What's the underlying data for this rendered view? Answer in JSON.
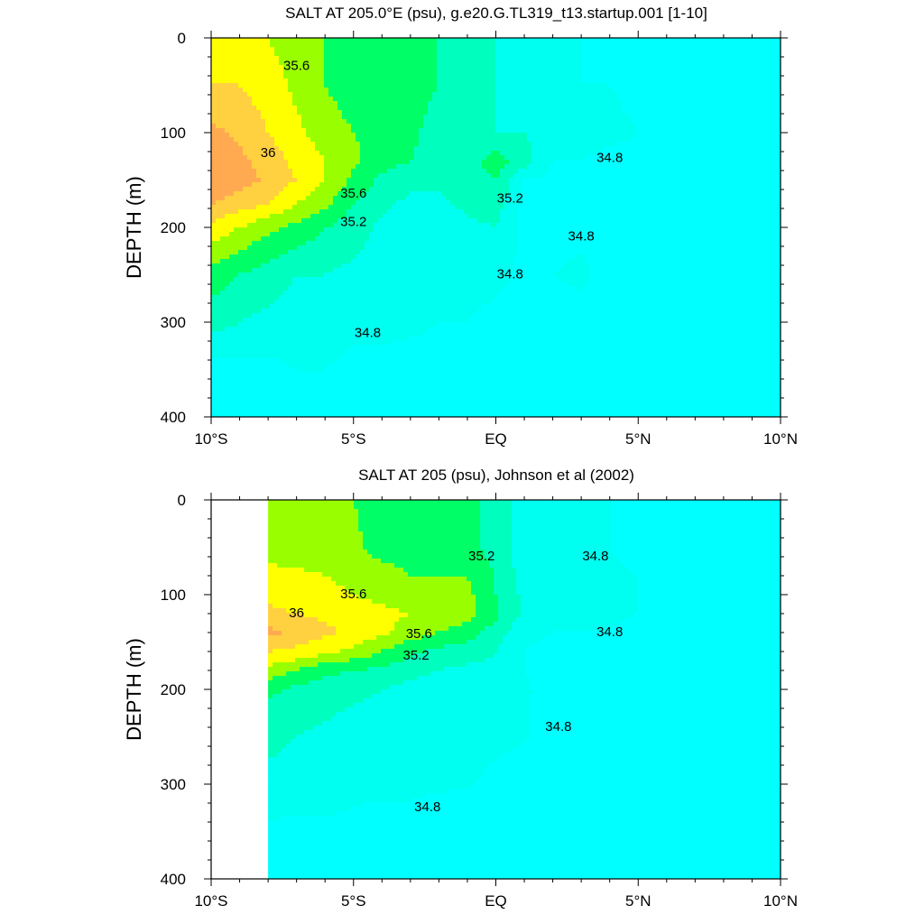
{
  "colors": {
    "scale": [
      "#00ffff",
      "#00fff0",
      "#00ffbf",
      "#00ff66",
      "#99ff00",
      "#ffff00",
      "#ffd040",
      "#ffaa50"
    ],
    "levels": [
      34.6,
      34.8,
      35.0,
      35.2,
      35.4,
      35.6,
      35.8,
      36.0,
      36.2
    ],
    "line": "#000000",
    "missing": "#ffffff"
  },
  "chart_data": [
    {
      "type": "heatmap",
      "title": "SALT AT 205.0°E (psu), g.e20.G.TL319_t13.startup.001 [1-10]",
      "xlabel": "",
      "ylabel": "DEPTH (m)",
      "xlim": [
        -10,
        10
      ],
      "ylim": [
        400,
        0
      ],
      "xticks": [
        "10°S",
        "5°S",
        "EQ",
        "5°N",
        "10°N"
      ],
      "yticks": [
        "0",
        "100",
        "200",
        "300",
        "400"
      ],
      "contour_labels": [
        {
          "text": "35.6",
          "x": -7.0,
          "y": 30
        },
        {
          "text": "36",
          "x": -8.0,
          "y": 122
        },
        {
          "text": "35.6",
          "x": -5.0,
          "y": 165
        },
        {
          "text": "35.2",
          "x": -5.0,
          "y": 195
        },
        {
          "text": "35.2",
          "x": 0.5,
          "y": 170
        },
        {
          "text": "34.8",
          "x": 4.0,
          "y": 127
        },
        {
          "text": "34.8",
          "x": 3.0,
          "y": 210
        },
        {
          "text": "34.8",
          "x": 0.5,
          "y": 250
        },
        {
          "text": "34.8",
          "x": -4.5,
          "y": 312
        }
      ],
      "latitudes": [
        -10,
        -9,
        -8,
        -7,
        -6,
        -5,
        -4,
        -3,
        -2,
        -1,
        0,
        1,
        2,
        3,
        4,
        5,
        6,
        7,
        8,
        9,
        10
      ],
      "depths": [
        0,
        50,
        100,
        130,
        150,
        175,
        200,
        250,
        300,
        350,
        400
      ],
      "values": [
        [
          35.7,
          35.7,
          35.6,
          35.5,
          35.4,
          35.3,
          35.3,
          35.3,
          35.2,
          35.1,
          35.0,
          34.8,
          34.8,
          34.8,
          34.7,
          34.7,
          34.7,
          34.6,
          34.6,
          34.5,
          34.5
        ],
        [
          35.8,
          35.8,
          35.7,
          35.55,
          35.4,
          35.3,
          35.3,
          35.3,
          35.2,
          35.1,
          35.0,
          34.9,
          34.8,
          34.8,
          34.8,
          34.7,
          34.7,
          34.7,
          34.6,
          34.6,
          34.6
        ],
        [
          36.05,
          35.95,
          35.8,
          35.65,
          35.5,
          35.4,
          35.3,
          35.25,
          35.1,
          35.05,
          35.0,
          35.0,
          34.9,
          34.9,
          34.9,
          34.8,
          34.7,
          34.7,
          34.7,
          34.7,
          34.7
        ],
        [
          36.15,
          36.05,
          35.9,
          35.75,
          35.6,
          35.45,
          35.3,
          35.2,
          35.1,
          35.1,
          35.3,
          35.1,
          34.8,
          34.8,
          34.7,
          34.7,
          34.7,
          34.7,
          34.7,
          34.7,
          34.7
        ],
        [
          36.2,
          36.1,
          35.95,
          35.8,
          35.6,
          35.35,
          35.15,
          35.05,
          35.05,
          35.1,
          35.2,
          34.8,
          34.75,
          34.75,
          34.75,
          34.7,
          34.7,
          34.7,
          34.7,
          34.7,
          34.7
        ],
        [
          36.0,
          35.9,
          35.8,
          35.6,
          35.45,
          35.2,
          35.05,
          34.95,
          34.95,
          35.05,
          35.1,
          34.75,
          34.75,
          34.75,
          34.75,
          34.7,
          34.7,
          34.7,
          34.7,
          34.7,
          34.7
        ],
        [
          35.75,
          35.6,
          35.45,
          35.35,
          35.2,
          35.1,
          34.95,
          34.9,
          34.9,
          34.95,
          35.0,
          34.75,
          34.7,
          34.75,
          34.75,
          34.7,
          34.7,
          34.7,
          34.7,
          34.7,
          34.7
        ],
        [
          35.3,
          35.2,
          35.1,
          35.0,
          35.0,
          34.95,
          34.9,
          34.85,
          34.85,
          34.85,
          34.85,
          34.75,
          34.8,
          34.85,
          34.7,
          34.7,
          34.7,
          34.7,
          34.7,
          34.7,
          34.7
        ],
        [
          35.1,
          35.0,
          34.95,
          34.9,
          34.9,
          34.85,
          34.85,
          34.85,
          34.8,
          34.8,
          34.75,
          34.75,
          34.7,
          34.7,
          34.7,
          34.7,
          34.7,
          34.7,
          34.7,
          34.7,
          34.7
        ],
        [
          34.7,
          34.75,
          34.75,
          34.8,
          34.8,
          34.75,
          34.75,
          34.7,
          34.7,
          34.7,
          34.7,
          34.7,
          34.7,
          34.7,
          34.7,
          34.7,
          34.7,
          34.7,
          34.7,
          34.7,
          34.7
        ],
        [
          34.7,
          34.7,
          34.7,
          34.7,
          34.7,
          34.7,
          34.7,
          34.7,
          34.7,
          34.7,
          34.7,
          34.7,
          34.7,
          34.7,
          34.7,
          34.7,
          34.7,
          34.7,
          34.7,
          34.7,
          34.7
        ]
      ]
    },
    {
      "type": "heatmap",
      "title": "SALT AT 205 (psu), Johnson et al (2002)",
      "xlabel": "",
      "ylabel": "DEPTH (m)",
      "xlim": [
        -10,
        10
      ],
      "ylim": [
        400,
        0
      ],
      "xticks": [
        "10°S",
        "5°S",
        "EQ",
        "5°N",
        "10°N"
      ],
      "yticks": [
        "0",
        "100",
        "200",
        "300",
        "400"
      ],
      "data_xlim": [
        -8,
        10
      ],
      "contour_labels": [
        {
          "text": "35.2",
          "x": -0.5,
          "y": 60
        },
        {
          "text": "34.8",
          "x": 3.5,
          "y": 60
        },
        {
          "text": "35.6",
          "x": -5.0,
          "y": 100
        },
        {
          "text": "36",
          "x": -7.0,
          "y": 120
        },
        {
          "text": "35.6",
          "x": -2.7,
          "y": 142
        },
        {
          "text": "35.2",
          "x": -2.8,
          "y": 165
        },
        {
          "text": "34.8",
          "x": 4.0,
          "y": 140
        },
        {
          "text": "34.8",
          "x": 2.2,
          "y": 240
        },
        {
          "text": "34.8",
          "x": -2.4,
          "y": 325
        }
      ],
      "latitudes": [
        -8,
        -7,
        -6,
        -5,
        -4,
        -3,
        -2,
        -1,
        0,
        1,
        2,
        3,
        4,
        5,
        6,
        7,
        8,
        9,
        10
      ],
      "depths": [
        0,
        50,
        80,
        100,
        120,
        140,
        160,
        180,
        200,
        250,
        300,
        350,
        400
      ],
      "values": [
        [
          35.4,
          35.4,
          35.4,
          35.4,
          35.3,
          35.3,
          35.3,
          35.3,
          35.1,
          34.9,
          34.9,
          34.8,
          34.8,
          34.7,
          34.7,
          34.6,
          34.6,
          34.6,
          34.6
        ],
        [
          35.45,
          35.45,
          35.45,
          35.45,
          35.3,
          35.3,
          35.3,
          35.3,
          35.1,
          34.9,
          34.85,
          34.8,
          34.8,
          34.7,
          34.7,
          34.7,
          34.7,
          34.7,
          34.7
        ],
        [
          35.7,
          35.65,
          35.6,
          35.55,
          35.5,
          35.4,
          35.4,
          35.4,
          35.2,
          34.9,
          34.85,
          34.85,
          34.85,
          34.8,
          34.7,
          34.7,
          34.7,
          34.7,
          34.7
        ],
        [
          35.75,
          35.7,
          35.65,
          35.6,
          35.55,
          35.5,
          35.45,
          35.45,
          35.2,
          34.95,
          34.9,
          34.9,
          34.85,
          34.8,
          34.7,
          34.7,
          34.75,
          34.7,
          34.7
        ],
        [
          35.85,
          35.8,
          35.75,
          35.7,
          35.65,
          35.6,
          35.55,
          35.5,
          35.25,
          34.95,
          34.9,
          34.9,
          34.85,
          34.8,
          34.75,
          34.7,
          34.75,
          34.7,
          34.7
        ],
        [
          36.05,
          35.95,
          35.85,
          35.75,
          35.65,
          35.5,
          35.4,
          35.3,
          35.1,
          34.85,
          34.8,
          34.8,
          34.8,
          34.7,
          34.7,
          34.7,
          34.7,
          34.7,
          34.7
        ],
        [
          35.8,
          35.75,
          35.65,
          35.55,
          35.4,
          35.25,
          35.15,
          35.1,
          35.0,
          34.8,
          34.75,
          34.75,
          34.7,
          34.7,
          34.7,
          34.7,
          34.7,
          34.7,
          34.7
        ],
        [
          35.55,
          35.4,
          35.25,
          35.2,
          35.15,
          35.05,
          35.0,
          34.95,
          34.95,
          34.8,
          34.75,
          34.7,
          34.7,
          34.7,
          34.7,
          34.7,
          34.7,
          34.7,
          34.7
        ],
        [
          35.25,
          35.15,
          35.1,
          35.05,
          35.0,
          34.95,
          34.9,
          34.85,
          34.82,
          34.82,
          34.75,
          34.7,
          34.7,
          34.7,
          34.7,
          34.7,
          34.7,
          34.7,
          34.7
        ],
        [
          35.05,
          35.0,
          34.95,
          34.9,
          34.9,
          34.85,
          34.85,
          34.82,
          34.82,
          34.81,
          34.75,
          34.7,
          34.7,
          34.7,
          34.7,
          34.7,
          34.7,
          34.7,
          34.7
        ],
        [
          34.95,
          34.9,
          34.9,
          34.85,
          34.85,
          34.85,
          34.82,
          34.81,
          34.78,
          34.75,
          34.72,
          34.7,
          34.7,
          34.7,
          34.7,
          34.7,
          34.7,
          34.7,
          34.7
        ],
        [
          34.75,
          34.75,
          34.75,
          34.75,
          34.7,
          34.7,
          34.7,
          34.7,
          34.7,
          34.7,
          34.7,
          34.7,
          34.7,
          34.7,
          34.7,
          34.7,
          34.7,
          34.7,
          34.7
        ],
        [
          34.7,
          34.7,
          34.7,
          34.7,
          34.7,
          34.7,
          34.7,
          34.7,
          34.7,
          34.7,
          34.7,
          34.7,
          34.7,
          34.7,
          34.7,
          34.7,
          34.7,
          34.7,
          34.7
        ]
      ]
    }
  ]
}
